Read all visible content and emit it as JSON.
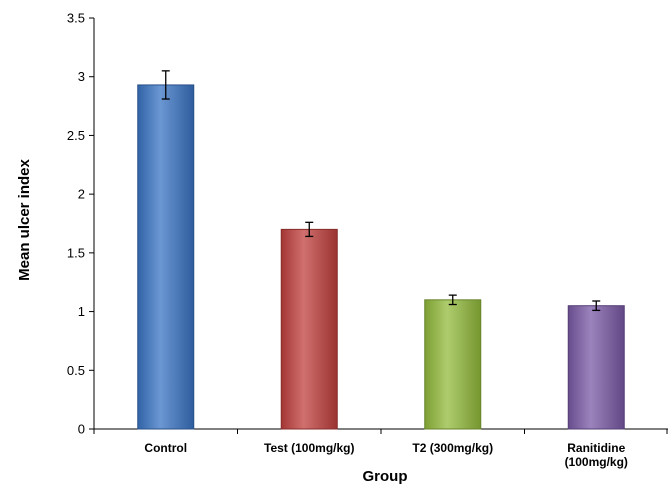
{
  "chart_data": {
    "type": "bar",
    "title": "",
    "xlabel": "Group",
    "ylabel": "Mean ulcer index",
    "ylim": [
      0,
      3.5
    ],
    "yticks": [
      "0",
      "0.5",
      "1",
      "1.5",
      "2",
      "2.5",
      "3",
      "3.5"
    ],
    "ytick_values": [
      0,
      0.5,
      1,
      1.5,
      2,
      2.5,
      3,
      3.5
    ],
    "grid": false,
    "legend": "none",
    "categories": [
      {
        "lines": [
          "Control"
        ]
      },
      {
        "lines": [
          "Test (100mg/kg)"
        ]
      },
      {
        "lines": [
          "T2 (300mg/kg)"
        ]
      },
      {
        "lines": [
          "Ranitidine",
          "(100mg/kg)"
        ]
      }
    ],
    "values": [
      2.93,
      1.7,
      1.1,
      1.05
    ],
    "errors": [
      0.12,
      0.06,
      0.04,
      0.04
    ],
    "colors": [
      "#3a74c4",
      "#c0403e",
      "#93bb3c",
      "#7a5aa6"
    ]
  }
}
